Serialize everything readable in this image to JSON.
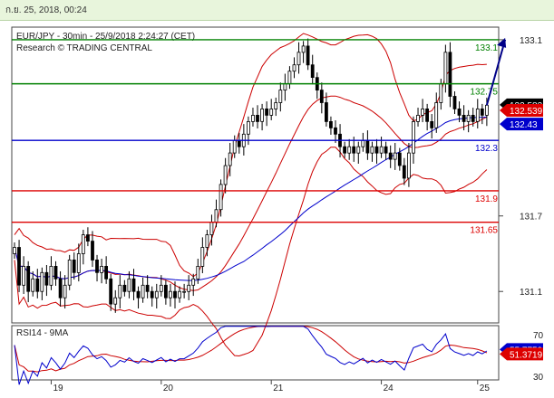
{
  "window": {
    "timestamp": "ก.ย. 25, 2018, 00:24"
  },
  "chart_data": {
    "type": "candlestick",
    "title": "EUR/JPY - 30min - 25/9/2018 2:24:27 (CET)",
    "subtitle": "Research © TRADING CENTRAL",
    "price_axis": {
      "ylim": [
        130.85,
        133.2
      ],
      "ticks": [
        "133.1",
        "131.7",
        "131.1"
      ],
      "tick_values": [
        133.1,
        131.7,
        131.1
      ]
    },
    "x_axis": {
      "xlim": [
        0,
        105
      ],
      "ticks": [
        "19",
        "20",
        "21",
        "24",
        "25"
      ],
      "tick_positions": [
        8,
        32,
        56,
        80,
        101
      ]
    },
    "levels": [
      {
        "label": "133.1",
        "value": 133.1,
        "color": "#008000"
      },
      {
        "label": "132.75",
        "value": 132.75,
        "color": "#008000"
      },
      {
        "label": "132.3",
        "value": 132.3,
        "color": "#0000cc"
      },
      {
        "label": "131.9",
        "value": 131.9,
        "color": "#dd0000"
      },
      {
        "label": "131.65",
        "value": 131.65,
        "color": "#dd0000"
      }
    ],
    "price_labels": [
      {
        "label": "132.583",
        "value": 132.583,
        "color": "#000000"
      },
      {
        "label": "132.539",
        "value": 132.539,
        "color": "#dd0000"
      },
      {
        "label": "132.43",
        "value": 132.43,
        "color": "#0000cc"
      }
    ],
    "closes": [
      131.45,
      131.15,
      131.3,
      131.1,
      131.2,
      131.1,
      131.25,
      131.15,
      131.3,
      131.2,
      131.05,
      131.15,
      131.35,
      131.25,
      131.4,
      131.55,
      131.5,
      131.35,
      131.25,
      131.3,
      131.2,
      131.0,
      131.05,
      131.15,
      131.1,
      131.2,
      131.1,
      131.05,
      131.15,
      131.1,
      131.05,
      131.1,
      131.15,
      131.05,
      131.1,
      131.05,
      131.1,
      131.1,
      131.15,
      131.2,
      131.3,
      131.45,
      131.55,
      131.65,
      131.75,
      131.95,
      132.1,
      132.2,
      132.3,
      132.25,
      132.35,
      132.45,
      132.5,
      132.45,
      132.55,
      132.5,
      132.55,
      132.6,
      132.7,
      132.75,
      132.85,
      132.9,
      133.0,
      133.05,
      132.9,
      132.8,
      132.7,
      132.6,
      132.45,
      132.4,
      132.35,
      132.25,
      132.2,
      132.25,
      132.2,
      132.25,
      132.3,
      132.2,
      132.25,
      132.2,
      132.25,
      132.2,
      132.15,
      132.2,
      132.1,
      132.0,
      132.2,
      132.45,
      132.5,
      132.55,
      132.45,
      132.4,
      132.6,
      132.75,
      133.0,
      132.65,
      132.55,
      132.5,
      132.45,
      132.5,
      132.45,
      132.55,
      132.5,
      132.58
    ],
    "projection": {
      "from": [
        103,
        132.58
      ],
      "to": [
        107,
        133.1
      ],
      "color": "#000088"
    },
    "rsi_panel": {
      "title": "RSI14 - 9MA",
      "ylim": [
        30,
        70
      ],
      "ticks": [
        "70",
        "30"
      ],
      "tick_values": [
        70,
        30
      ],
      "labels": [
        {
          "label": "55.7759",
          "value": 55.7759,
          "color": "#0000cc"
        },
        {
          "label": "51.3719",
          "value": 51.3719,
          "color": "#dd0000"
        }
      ]
    }
  }
}
